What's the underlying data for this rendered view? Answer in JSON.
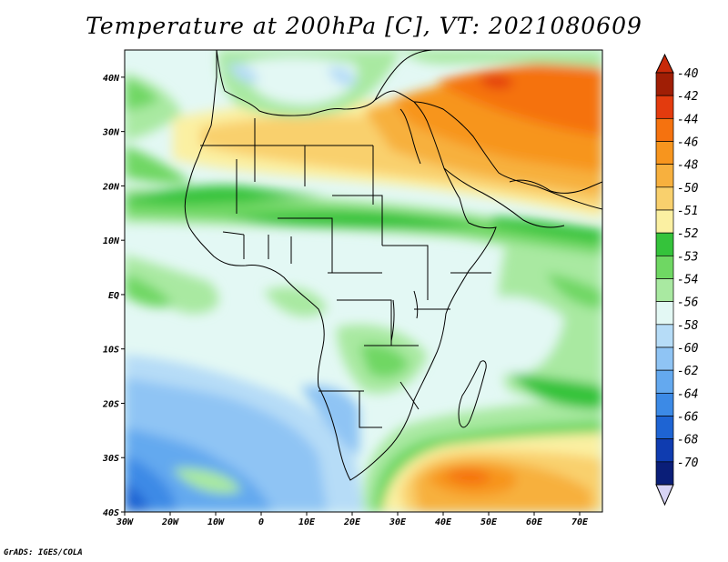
{
  "title": "Temperature at 200hPa [C], VT: 2021080609",
  "credit": "GrADS: IGES/COLA",
  "map": {
    "lon_range": [
      -30,
      75
    ],
    "lat_range": [
      -40,
      45
    ],
    "lat_ticks": [
      {
        "value": 40,
        "label": "40N"
      },
      {
        "value": 30,
        "label": "30N"
      },
      {
        "value": 20,
        "label": "20N"
      },
      {
        "value": 10,
        "label": "10N"
      },
      {
        "value": 0,
        "label": "EQ"
      },
      {
        "value": -10,
        "label": "10S"
      },
      {
        "value": -20,
        "label": "20S"
      },
      {
        "value": -30,
        "label": "30S"
      },
      {
        "value": -40,
        "label": "40S"
      }
    ],
    "lon_ticks": [
      {
        "value": -30,
        "label": "30W"
      },
      {
        "value": -20,
        "label": "20W"
      },
      {
        "value": -10,
        "label": "10W"
      },
      {
        "value": 0,
        "label": "0"
      },
      {
        "value": 10,
        "label": "10E"
      },
      {
        "value": 20,
        "label": "20E"
      },
      {
        "value": 30,
        "label": "30E"
      },
      {
        "value": 40,
        "label": "40E"
      },
      {
        "value": 50,
        "label": "50E"
      },
      {
        "value": 60,
        "label": "60E"
      },
      {
        "value": 70,
        "label": "70E"
      }
    ]
  },
  "colorbar": {
    "levels": [
      {
        "label": "-40",
        "color": "#a01e05"
      },
      {
        "label": "-42",
        "color": "#e33b0e"
      },
      {
        "label": "-44",
        "color": "#f5720f"
      },
      {
        "label": "-46",
        "color": "#f7951e"
      },
      {
        "label": "-48",
        "color": "#f7b03e"
      },
      {
        "label": "-50",
        "color": "#f9d06d"
      },
      {
        "label": "-51",
        "color": "#fbf0a2"
      },
      {
        "label": "-52",
        "color": "#35c33b"
      },
      {
        "label": "-53",
        "color": "#6fd763"
      },
      {
        "label": "-54",
        "color": "#a9e9a1"
      },
      {
        "label": "-56",
        "color": "#e3f8f4"
      },
      {
        "label": "-58",
        "color": "#b6dcf7"
      },
      {
        "label": "-60",
        "color": "#8fc4f4"
      },
      {
        "label": "-62",
        "color": "#64a9ef"
      },
      {
        "label": "-64",
        "color": "#3c8ae6"
      },
      {
        "label": "-66",
        "color": "#1e64d3"
      },
      {
        "label": "-68",
        "color": "#0f3cb0"
      },
      {
        "label": "-70",
        "color": "#0a1e78"
      }
    ],
    "top_cap_color": "#c82a0a",
    "bottom_cap_color": "#d8d4f5"
  }
}
